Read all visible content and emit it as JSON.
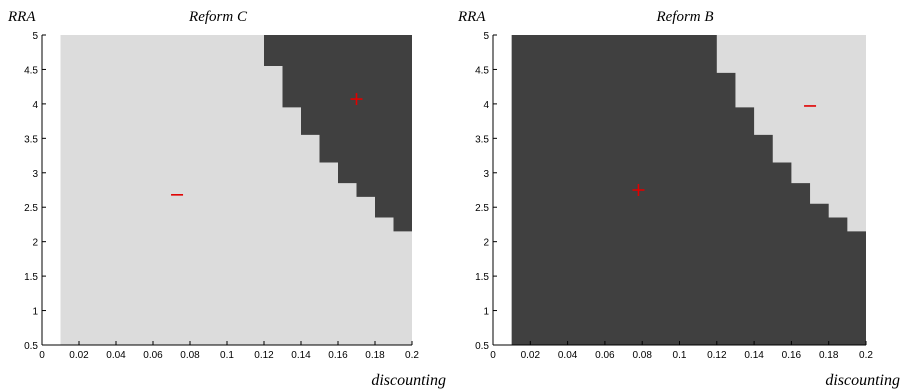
{
  "colors": {
    "light": "#dcdcdc",
    "dark": "#404040",
    "marker": "#e00000"
  },
  "chart_data": [
    {
      "type": "heatmap",
      "title": "Reform C",
      "ylabel": "RRA",
      "xlabel": "discounting",
      "xlim": [
        0,
        0.2
      ],
      "ylim": [
        0.5,
        5
      ],
      "xticks": [
        "0",
        "0.02",
        "0.04",
        "0.06",
        "0.08",
        "0.1",
        "0.12",
        "0.14",
        "0.16",
        "0.18",
        "0.2"
      ],
      "yticks": [
        "0.5",
        "1",
        "1.5",
        "2",
        "2.5",
        "3",
        "3.5",
        "4",
        "4.5",
        "5"
      ],
      "data_extent": {
        "x": [
          0.01,
          0.2
        ],
        "y": [
          0.5,
          5
        ]
      },
      "background": "light",
      "region": "dark",
      "region_side": "upper-right",
      "boundary": [
        {
          "x": 0.12,
          "y": 4.55
        },
        {
          "x": 0.13,
          "y": 3.95
        },
        {
          "x": 0.14,
          "y": 3.55
        },
        {
          "x": 0.15,
          "y": 3.15
        },
        {
          "x": 0.16,
          "y": 2.85
        },
        {
          "x": 0.17,
          "y": 2.65
        },
        {
          "x": 0.18,
          "y": 2.35
        },
        {
          "x": 0.19,
          "y": 2.15
        }
      ],
      "annotations": [
        {
          "text": "+",
          "x": 0.17,
          "y": 4.07
        },
        {
          "text": "−",
          "x": 0.073,
          "y": 2.68
        }
      ]
    },
    {
      "type": "heatmap",
      "title": "Reform B",
      "ylabel": "RRA",
      "xlabel": "discounting",
      "xlim": [
        0,
        0.2
      ],
      "ylim": [
        0.5,
        5
      ],
      "xticks": [
        "0",
        "0.02",
        "0.04",
        "0.06",
        "0.08",
        "0.1",
        "0.12",
        "0.14",
        "0.16",
        "0.18",
        "0.2"
      ],
      "yticks": [
        "0.5",
        "1",
        "1.5",
        "2",
        "2.5",
        "3",
        "3.5",
        "4",
        "4.5",
        "5"
      ],
      "data_extent": {
        "x": [
          0.01,
          0.2
        ],
        "y": [
          0.5,
          5
        ]
      },
      "background": "dark",
      "region": "light",
      "region_side": "upper-right",
      "boundary": [
        {
          "x": 0.12,
          "y": 4.45
        },
        {
          "x": 0.13,
          "y": 3.95
        },
        {
          "x": 0.14,
          "y": 3.55
        },
        {
          "x": 0.15,
          "y": 3.15
        },
        {
          "x": 0.16,
          "y": 2.85
        },
        {
          "x": 0.17,
          "y": 2.55
        },
        {
          "x": 0.18,
          "y": 2.35
        },
        {
          "x": 0.19,
          "y": 2.15
        }
      ],
      "annotations": [
        {
          "text": "+",
          "x": 0.078,
          "y": 2.75
        },
        {
          "text": "−",
          "x": 0.17,
          "y": 3.97
        }
      ]
    }
  ]
}
